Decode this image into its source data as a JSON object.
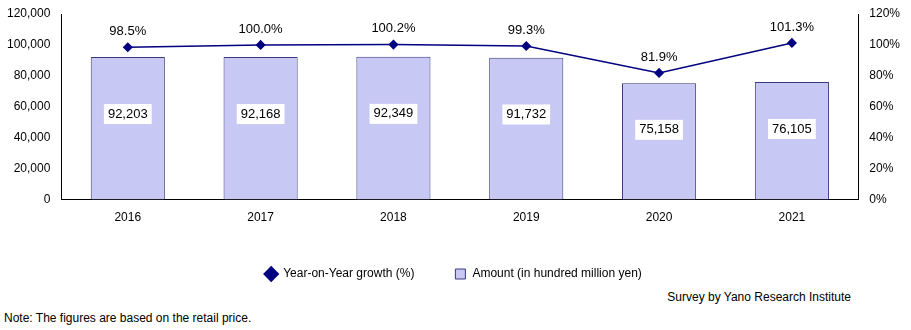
{
  "chart_data": {
    "type": "bar",
    "categories": [
      "2016",
      "2017",
      "2018",
      "2019",
      "2020",
      "2021"
    ],
    "series": [
      {
        "name": "Amount (in hundred million yen)",
        "type": "bar",
        "color": "#c8c8f5",
        "values": [
          92203,
          92168,
          92349,
          91732,
          75158,
          76105
        ],
        "value_labels": [
          "92,203",
          "92,168",
          "92,349",
          "91,732",
          "75,158",
          "76,105"
        ]
      },
      {
        "name": "Year-on-Year growth (%)",
        "type": "line",
        "axis": "y2",
        "color": "#000080",
        "marker": "diamond",
        "values": [
          98.5,
          100.0,
          100.2,
          99.3,
          81.9,
          101.3
        ],
        "value_labels": [
          "98.5%",
          "100.0%",
          "100.2%",
          "99.3%",
          "81.9%",
          "101.3%"
        ]
      }
    ],
    "ylim": [
      0,
      120000
    ],
    "yticks": [
      0,
      {
        "value": 20000,
        "label": "20,000"
      },
      {
        "value": 40000,
        "label": "40,000"
      },
      {
        "value": 60000,
        "label": "60,000"
      },
      {
        "value": 80000,
        "label": "80,000"
      },
      {
        "value": 100000,
        "label": "100,000"
      },
      {
        "value": 120000,
        "label": "120,000"
      }
    ],
    "y2lim": [
      0,
      120
    ],
    "y2ticks": [
      {
        "value": 0,
        "label": "0%"
      },
      {
        "value": 20,
        "label": "20%"
      },
      {
        "value": 40,
        "label": "40%"
      },
      {
        "value": 60,
        "label": "60%"
      },
      {
        "value": 80,
        "label": "80%"
      },
      {
        "value": 100,
        "label": "100%"
      },
      {
        "value": 120,
        "label": "120%"
      }
    ],
    "grid": false,
    "legend": "bottom",
    "data_labels": true,
    "annotations": [
      "Survey by Yano Research Institute",
      "Note: The figures are based on the retail price."
    ]
  }
}
